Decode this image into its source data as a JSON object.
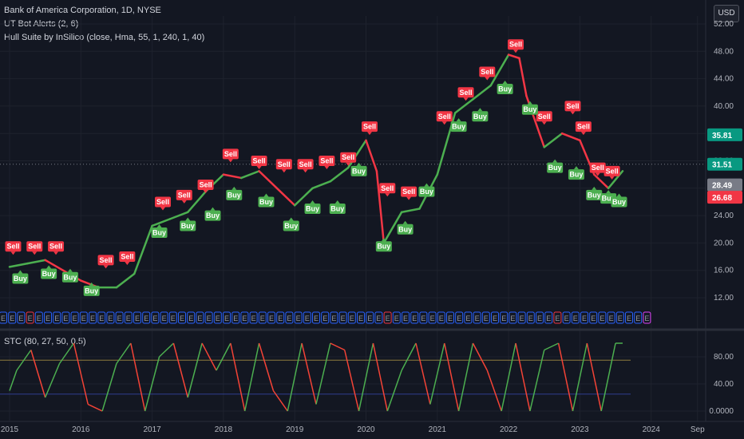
{
  "header": {
    "symbol_title": "Bank of America Corporation, 1D, NYSE",
    "indicator_1": "UT Bot Alerts (2, 6)",
    "indicator_2": "Hull Suite by InSilico (close, Hma, 55, 1, 240, 1, 40)",
    "currency": "USD"
  },
  "stc_panel": {
    "label": "STC (80, 27, 50, 0.5)"
  },
  "price_labels": [
    {
      "value": "35.81",
      "color": "#089981"
    },
    {
      "value": "31.51",
      "color": "#089981"
    },
    {
      "value": "28.49",
      "color": "#787b86"
    },
    {
      "value": "26.68",
      "color": "#f23645"
    }
  ],
  "colors": {
    "buy": "#4caf50",
    "sell": "#f23645",
    "hull_up": "#4caf50",
    "hull_down": "#f23645",
    "stc_up": "#4caf50",
    "stc_down": "#f44336"
  },
  "marker_letter": "E",
  "chart_data": [
    {
      "type": "line",
      "title": "Bank of America Corporation, 1D, NYSE",
      "x_ticks": [
        "2015",
        "2016",
        "2017",
        "2018",
        "2019",
        "2020",
        "2021",
        "2022",
        "2023",
        "2024",
        "Sep"
      ],
      "y_ticks": [
        "52.00",
        "48.00",
        "44.00",
        "40.00",
        "36.00",
        "32.00",
        "28.00",
        "24.00",
        "20.00",
        "16.00",
        "12.00"
      ],
      "ylim": [
        12,
        52
      ],
      "x": [
        2015.0,
        2015.25,
        2015.5,
        2015.75,
        2016.0,
        2016.25,
        2016.5,
        2016.75,
        2017.0,
        2017.25,
        2017.5,
        2017.75,
        2018.0,
        2018.25,
        2018.5,
        2018.75,
        2019.0,
        2019.25,
        2019.5,
        2019.75,
        2020.0,
        2020.15,
        2020.25,
        2020.5,
        2020.75,
        2021.0,
        2021.25,
        2021.5,
        2021.75,
        2022.0,
        2022.15,
        2022.25,
        2022.5,
        2022.75,
        2023.0,
        2023.2,
        2023.4,
        2023.6
      ],
      "series": [
        {
          "values": [
            16.5,
            17.0,
            17.5,
            16.0,
            14.5,
            13.5,
            13.5,
            15.5,
            22.5,
            23.5,
            24.5,
            27.5,
            30.0,
            29.5,
            30.5,
            28.0,
            25.5,
            28.0,
            29.0,
            31.0,
            35.0,
            30.5,
            20.0,
            24.5,
            25.0,
            30.0,
            39.0,
            41.0,
            43.0,
            47.5,
            47.0,
            41.5,
            34.0,
            36.0,
            35.0,
            30.0,
            28.0,
            30.5
          ]
        }
      ],
      "signals": [
        {
          "type": "Sell",
          "x": 2015.05,
          "y": 19.5
        },
        {
          "type": "Sell",
          "x": 2015.35,
          "y": 19.5
        },
        {
          "type": "Sell",
          "x": 2015.65,
          "y": 19.5
        },
        {
          "type": "Buy",
          "x": 2015.15,
          "y": 14.8
        },
        {
          "type": "Buy",
          "x": 2015.55,
          "y": 15.5
        },
        {
          "type": "Buy",
          "x": 2015.85,
          "y": 15.0
        },
        {
          "type": "Sell",
          "x": 2016.35,
          "y": 17.5
        },
        {
          "type": "Sell",
          "x": 2016.65,
          "y": 18.0
        },
        {
          "type": "Buy",
          "x": 2016.15,
          "y": 13.0
        },
        {
          "type": "Sell",
          "x": 2017.15,
          "y": 26.0
        },
        {
          "type": "Sell",
          "x": 2017.45,
          "y": 27.0
        },
        {
          "type": "Sell",
          "x": 2017.75,
          "y": 28.5
        },
        {
          "type": "Buy",
          "x": 2017.1,
          "y": 21.5
        },
        {
          "type": "Buy",
          "x": 2017.5,
          "y": 22.5
        },
        {
          "type": "Buy",
          "x": 2017.85,
          "y": 24.0
        },
        {
          "type": "Sell",
          "x": 2018.1,
          "y": 33.0
        },
        {
          "type": "Sell",
          "x": 2018.5,
          "y": 32.0
        },
        {
          "type": "Sell",
          "x": 2018.85,
          "y": 31.5
        },
        {
          "type": "Buy",
          "x": 2018.15,
          "y": 27.0
        },
        {
          "type": "Buy",
          "x": 2018.6,
          "y": 26.0
        },
        {
          "type": "Buy",
          "x": 2018.95,
          "y": 22.5
        },
        {
          "type": "Sell",
          "x": 2019.15,
          "y": 31.5
        },
        {
          "type": "Sell",
          "x": 2019.45,
          "y": 32.0
        },
        {
          "type": "Sell",
          "x": 2019.75,
          "y": 32.5
        },
        {
          "type": "Buy",
          "x": 2019.25,
          "y": 25.0
        },
        {
          "type": "Buy",
          "x": 2019.6,
          "y": 25.0
        },
        {
          "type": "Buy",
          "x": 2019.9,
          "y": 30.5
        },
        {
          "type": "Sell",
          "x": 2020.05,
          "y": 37.0
        },
        {
          "type": "Sell",
          "x": 2020.3,
          "y": 28.0
        },
        {
          "type": "Sell",
          "x": 2020.6,
          "y": 27.5
        },
        {
          "type": "Buy",
          "x": 2020.25,
          "y": 19.5
        },
        {
          "type": "Buy",
          "x": 2020.55,
          "y": 22.0
        },
        {
          "type": "Buy",
          "x": 2020.85,
          "y": 27.5
        },
        {
          "type": "Sell",
          "x": 2021.1,
          "y": 38.5
        },
        {
          "type": "Sell",
          "x": 2021.4,
          "y": 42.0
        },
        {
          "type": "Sell",
          "x": 2021.7,
          "y": 45.0
        },
        {
          "type": "Buy",
          "x": 2021.3,
          "y": 37.0
        },
        {
          "type": "Buy",
          "x": 2021.6,
          "y": 38.5
        },
        {
          "type": "Buy",
          "x": 2021.95,
          "y": 42.5
        },
        {
          "type": "Sell",
          "x": 2022.1,
          "y": 49.0
        },
        {
          "type": "Sell",
          "x": 2022.5,
          "y": 38.5
        },
        {
          "type": "Sell",
          "x": 2022.9,
          "y": 40.0
        },
        {
          "type": "Buy",
          "x": 2022.3,
          "y": 39.5
        },
        {
          "type": "Buy",
          "x": 2022.65,
          "y": 31.0
        },
        {
          "type": "Buy",
          "x": 2022.95,
          "y": 30.0
        },
        {
          "type": "Sell",
          "x": 2023.05,
          "y": 37.0
        },
        {
          "type": "Sell",
          "x": 2023.25,
          "y": 31.0
        },
        {
          "type": "Sell",
          "x": 2023.45,
          "y": 30.5
        },
        {
          "type": "Buy",
          "x": 2023.2,
          "y": 27.0
        },
        {
          "type": "Buy",
          "x": 2023.4,
          "y": 26.5
        },
        {
          "type": "Buy",
          "x": 2023.55,
          "y": 26.0
        }
      ]
    },
    {
      "type": "line",
      "title": "STC (80, 27, 50, 0.5)",
      "y_ticks": [
        "80.00",
        "40.00",
        "0.0000"
      ],
      "ylim": [
        0,
        100
      ],
      "levels": [
        75,
        25
      ],
      "x": [
        2015.0,
        2015.1,
        2015.3,
        2015.5,
        2015.7,
        2015.9,
        2016.1,
        2016.3,
        2016.5,
        2016.7,
        2016.9,
        2017.1,
        2017.3,
        2017.5,
        2017.7,
        2017.9,
        2018.1,
        2018.3,
        2018.5,
        2018.7,
        2018.9,
        2019.1,
        2019.3,
        2019.5,
        2019.7,
        2019.9,
        2020.1,
        2020.3,
        2020.5,
        2020.7,
        2020.9,
        2021.1,
        2021.3,
        2021.5,
        2021.7,
        2021.9,
        2022.1,
        2022.3,
        2022.5,
        2022.7,
        2022.9,
        2023.1,
        2023.3,
        2023.5,
        2023.6
      ],
      "series": [
        {
          "values": [
            30,
            60,
            90,
            20,
            70,
            100,
            10,
            0,
            70,
            100,
            0,
            80,
            100,
            20,
            100,
            60,
            100,
            0,
            100,
            30,
            0,
            100,
            10,
            100,
            90,
            0,
            100,
            0,
            60,
            100,
            10,
            100,
            0,
            100,
            60,
            0,
            100,
            0,
            90,
            100,
            0,
            100,
            0,
            100,
            100
          ]
        }
      ]
    }
  ]
}
